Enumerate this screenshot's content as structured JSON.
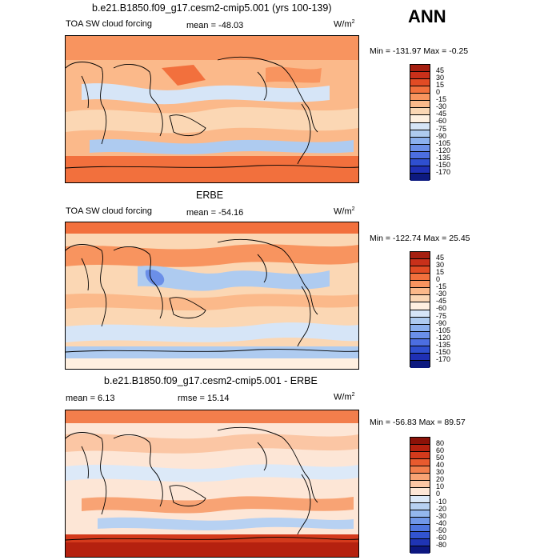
{
  "season": "ANN",
  "panels": [
    {
      "title": "b.e21.B1850.f09_g17.cesm2-cmip5.001 (yrs 100-139)",
      "variable": "TOA SW cloud forcing",
      "stat_text": "mean = -48.03",
      "unit_base": "W/m",
      "unit_exp": "2",
      "minmax": "Min = -131.97 Max = -0.25",
      "colorbar_labels": [
        "45",
        "30",
        "15",
        "0",
        "-15",
        "-30",
        "-45",
        "-60",
        "-75",
        "-90",
        "-105",
        "-120",
        "-135",
        "-150",
        "-170"
      ],
      "colorbar_colors": [
        "#a51f10",
        "#c9301a",
        "#e24b24",
        "#f2703d",
        "#f8945f",
        "#fbb98a",
        "#fbd7b4",
        "#fff0e0",
        "#d6e5f7",
        "#aecbf0",
        "#8bb0ee",
        "#6b8fe8",
        "#4c6ee0",
        "#2f4fcf",
        "#1f30b5",
        "#0d1a80"
      ]
    },
    {
      "title": "ERBE",
      "variable": "TOA SW cloud forcing",
      "stat_text": "mean = -54.16",
      "unit_base": "W/m",
      "unit_exp": "2",
      "minmax": "Min = -122.74 Max = 25.45",
      "colorbar_labels": [
        "45",
        "30",
        "15",
        "0",
        "-15",
        "-30",
        "-45",
        "-60",
        "-75",
        "-90",
        "-105",
        "-120",
        "-135",
        "-150",
        "-170"
      ],
      "colorbar_colors": [
        "#a51f10",
        "#c9301a",
        "#e24b24",
        "#f2703d",
        "#f8945f",
        "#fbb98a",
        "#fbd7b4",
        "#fff0e0",
        "#d6e5f7",
        "#aecbf0",
        "#8bb0ee",
        "#6b8fe8",
        "#4c6ee0",
        "#2f4fcf",
        "#1f30b5",
        "#0d1a80"
      ]
    },
    {
      "title": "b.e21.B1850.f09_g17.cesm2-cmip5.001 - ERBE",
      "stat_text": "mean = 6.13",
      "rmse_text": "rmse = 15.14",
      "unit_base": "W/m",
      "unit_exp": "2",
      "minmax": "Min = -56.83 Max = 89.57",
      "colorbar_labels": [
        "80",
        "60",
        "50",
        "40",
        "30",
        "20",
        "10",
        "0",
        "-10",
        "-20",
        "-30",
        "-40",
        "-50",
        "-60",
        "-80"
      ],
      "colorbar_colors": [
        "#8c1208",
        "#b5210f",
        "#d43a1c",
        "#e85a2e",
        "#f27e4c",
        "#f8a374",
        "#fbc6a4",
        "#fde6d6",
        "#dce9f8",
        "#b7d1f2",
        "#94b8ee",
        "#7098e9",
        "#4e76e0",
        "#3254d0",
        "#1f34b4",
        "#0c1780"
      ]
    }
  ]
}
